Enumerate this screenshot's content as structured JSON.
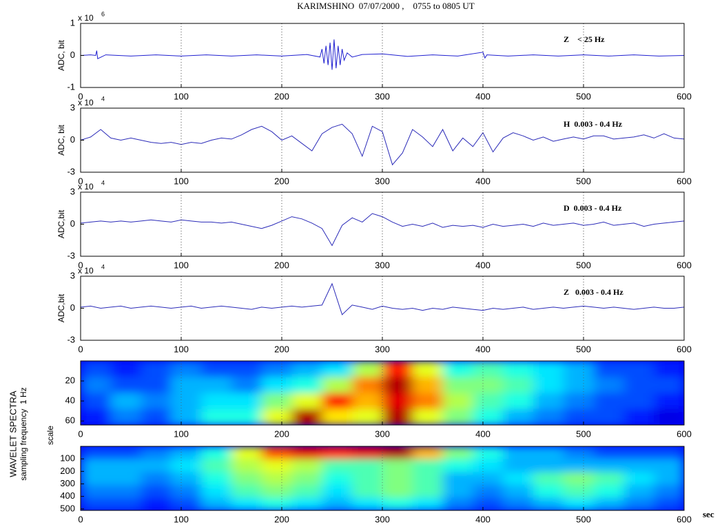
{
  "title": "KARIMSHINO  07/07/2000 ,    0755 to 0805 UT",
  "side_label": "WAVELET SPECTRA",
  "side_sublabel": "sampling frequency  1 Hz",
  "spectra_ylabel": "scale",
  "x_unit": "sec",
  "chart_data": [
    {
      "type": "line",
      "ylabel": "ADC, bit",
      "annotation": "Z    < 25 Hz",
      "scale_label": {
        "base": "x 10",
        "exponent": "6"
      },
      "color": "#1f1fd0",
      "x": [
        0,
        10,
        15,
        16,
        17,
        25,
        50,
        75,
        100,
        125,
        150,
        175,
        200,
        225,
        238,
        240,
        242,
        244,
        246,
        248,
        250,
        252,
        254,
        256,
        258,
        260,
        262,
        265,
        270,
        280,
        300,
        325,
        350,
        375,
        400,
        402,
        404,
        425,
        450,
        475,
        500,
        525,
        550,
        575,
        600
      ],
      "values": [
        0,
        0.02,
        0,
        0.15,
        -0.1,
        0.02,
        -0.02,
        0.02,
        -0.02,
        0.02,
        -0.02,
        0.02,
        -0.02,
        0.03,
        -0.05,
        0.2,
        -0.25,
        0.3,
        -0.3,
        0.4,
        -0.45,
        0.5,
        -0.4,
        0.3,
        -0.3,
        0.2,
        -0.15,
        0.08,
        -0.05,
        0.03,
        0.05,
        -0.03,
        0.02,
        -0.02,
        0.1,
        -0.08,
        0.02,
        -0.02,
        0.02,
        -0.02,
        0.02,
        -0.02,
        0.02,
        -0.02,
        0
      ],
      "xlim": [
        0,
        600
      ],
      "xticks": [
        0,
        100,
        200,
        300,
        400,
        500,
        600
      ],
      "ylim": [
        -1,
        1
      ],
      "yticks": [
        -1,
        0,
        1
      ],
      "grid": true
    },
    {
      "type": "line",
      "ylabel": "ADC, bit",
      "annotation": "H  0.003 - 0.4 Hz",
      "scale_label": {
        "base": "x 10",
        "exponent": "4"
      },
      "color": "#2a2ab8",
      "x": [
        0,
        10,
        20,
        30,
        40,
        50,
        60,
        70,
        80,
        90,
        100,
        110,
        120,
        130,
        140,
        150,
        160,
        170,
        180,
        190,
        200,
        210,
        220,
        230,
        240,
        250,
        260,
        270,
        280,
        290,
        300,
        310,
        320,
        330,
        340,
        350,
        360,
        370,
        380,
        390,
        400,
        410,
        420,
        430,
        440,
        450,
        460,
        470,
        480,
        490,
        500,
        510,
        520,
        530,
        540,
        550,
        560,
        570,
        580,
        590,
        600
      ],
      "values": [
        0,
        0.3,
        1.0,
        0.2,
        0,
        0.2,
        0,
        -0.2,
        -0.3,
        -0.2,
        -0.4,
        -0.2,
        -0.3,
        0,
        0.2,
        0.1,
        0.5,
        1.0,
        1.3,
        0.8,
        0,
        0.4,
        -0.3,
        -1.0,
        0.6,
        1.2,
        1.5,
        0.6,
        -1.5,
        1.3,
        0.8,
        -2.3,
        -1.2,
        1.0,
        0.3,
        -0.6,
        1.0,
        -1.0,
        0.2,
        -0.6,
        0.7,
        -1.1,
        0.2,
        0.7,
        0.4,
        0,
        0.3,
        -0.1,
        0.1,
        0.3,
        0.1,
        0.4,
        0.4,
        0.1,
        0.2,
        0.3,
        0.5,
        0.2,
        0.6,
        0.2,
        0.1
      ],
      "xlim": [
        0,
        600
      ],
      "xticks": [
        0,
        100,
        200,
        300,
        400,
        500,
        600
      ],
      "ylim": [
        -3,
        3
      ],
      "yticks": [
        -3,
        0,
        3
      ],
      "grid": true
    },
    {
      "type": "line",
      "ylabel": "ADC,bit",
      "annotation": "D  0.003 - 0.4 Hz",
      "scale_label": {
        "base": "x 10",
        "exponent": "4"
      },
      "color": "#2a2ab8",
      "x": [
        0,
        10,
        20,
        30,
        40,
        50,
        60,
        70,
        80,
        90,
        100,
        110,
        120,
        130,
        140,
        150,
        160,
        170,
        180,
        190,
        200,
        210,
        220,
        230,
        240,
        250,
        260,
        270,
        280,
        290,
        300,
        310,
        320,
        330,
        340,
        350,
        360,
        370,
        380,
        390,
        400,
        410,
        420,
        430,
        440,
        450,
        460,
        470,
        480,
        490,
        500,
        510,
        520,
        530,
        540,
        550,
        560,
        570,
        580,
        590,
        600
      ],
      "values": [
        0.1,
        0.2,
        0.3,
        0.2,
        0.3,
        0.2,
        0.3,
        0.4,
        0.3,
        0.2,
        0.4,
        0.3,
        0.2,
        0.2,
        0.1,
        0.2,
        0,
        -0.2,
        -0.4,
        -0.1,
        0.3,
        0.7,
        0.5,
        0.1,
        -0.4,
        -2.0,
        -0.1,
        0.6,
        0.2,
        1.0,
        0.7,
        0.2,
        -0.2,
        0,
        -0.2,
        0.1,
        -0.3,
        -0.1,
        -0.2,
        -0.1,
        -0.3,
        0,
        -0.2,
        -0.1,
        0,
        -0.2,
        0.1,
        -0.1,
        0,
        0.1,
        -0.1,
        0,
        0.2,
        -0.1,
        0,
        0.1,
        -0.2,
        0,
        0.1,
        0.2,
        0.3
      ],
      "xlim": [
        0,
        600
      ],
      "xticks": [
        0,
        100,
        200,
        300,
        400,
        500,
        600
      ],
      "ylim": [
        -3,
        3
      ],
      "yticks": [
        -3,
        0,
        3
      ],
      "grid": true
    },
    {
      "type": "line",
      "ylabel": "ADC,bit",
      "annotation": "Z   0.003 - 0.4 Hz",
      "scale_label": {
        "base": "x 10",
        "exponent": "4"
      },
      "color": "#2a2ab8",
      "x": [
        0,
        10,
        20,
        30,
        40,
        50,
        60,
        70,
        80,
        90,
        100,
        110,
        120,
        130,
        140,
        150,
        160,
        170,
        180,
        190,
        200,
        210,
        220,
        230,
        240,
        250,
        260,
        270,
        280,
        290,
        300,
        310,
        320,
        330,
        340,
        350,
        360,
        370,
        380,
        390,
        400,
        410,
        420,
        430,
        440,
        450,
        460,
        470,
        480,
        490,
        500,
        510,
        520,
        530,
        540,
        550,
        560,
        570,
        580,
        590,
        600
      ],
      "values": [
        0.1,
        0.2,
        0,
        0.1,
        0.2,
        0,
        0.1,
        0.2,
        0.1,
        0,
        0.1,
        0.2,
        0,
        0.1,
        0.2,
        0.1,
        0,
        -0.1,
        0.1,
        0,
        0.1,
        0.2,
        0.1,
        0.2,
        0.3,
        2.3,
        -0.6,
        0.3,
        0.1,
        -0.1,
        0.2,
        0,
        -0.1,
        0,
        -0.2,
        0,
        -0.1,
        0.1,
        0,
        -0.1,
        -0.2,
        0,
        -0.1,
        0,
        0.1,
        -0.1,
        0,
        0.1,
        0,
        0.1,
        0.2,
        0.1,
        0,
        0.1,
        0,
        -0.1,
        0,
        0.1,
        0,
        0,
        0.1
      ],
      "xlim": [
        0,
        600
      ],
      "xticks": [
        0,
        100,
        200,
        300,
        400,
        500,
        600
      ],
      "ylim": [
        -3,
        3
      ],
      "yticks": [
        -3,
        0,
        3
      ],
      "grid": true
    },
    {
      "type": "heatmap",
      "x": [
        15,
        45,
        75,
        105,
        135,
        165,
        195,
        225,
        255,
        285,
        315,
        345,
        375,
        405,
        435,
        465,
        495,
        525,
        555,
        585
      ],
      "y": [
        8,
        24,
        40,
        56
      ],
      "z": [
        [
          0.2,
          0.15,
          0.2,
          0.25,
          0.2,
          0.2,
          0.25,
          0.3,
          0.35,
          0.55,
          0.85,
          0.6,
          0.4,
          0.45,
          0.4,
          0.35,
          0.3,
          0.2,
          0.2,
          0.15
        ],
        [
          0.25,
          0.2,
          0.2,
          0.3,
          0.3,
          0.25,
          0.35,
          0.4,
          0.55,
          0.75,
          0.95,
          0.7,
          0.5,
          0.5,
          0.45,
          0.35,
          0.3,
          0.25,
          0.2,
          0.2
        ],
        [
          0.2,
          0.3,
          0.25,
          0.3,
          0.35,
          0.35,
          0.5,
          0.6,
          0.85,
          0.7,
          0.9,
          0.75,
          0.55,
          0.45,
          0.4,
          0.3,
          0.25,
          0.2,
          0.2,
          0.15
        ],
        [
          0.15,
          0.25,
          0.2,
          0.3,
          0.4,
          0.4,
          0.6,
          0.95,
          0.65,
          0.6,
          0.95,
          0.6,
          0.5,
          0.4,
          0.3,
          0.25,
          0.2,
          0.2,
          0.15,
          0.1
        ]
      ],
      "xlim": [
        0,
        600
      ],
      "xticks": [
        0,
        100,
        200,
        300,
        400,
        500,
        600
      ],
      "ylim": [
        64,
        0
      ],
      "yticks": [
        20,
        40,
        60
      ],
      "grid": true
    },
    {
      "type": "heatmap",
      "x": [
        15,
        45,
        75,
        105,
        135,
        165,
        195,
        225,
        255,
        285,
        315,
        345,
        375,
        405,
        435,
        465,
        495,
        525,
        555,
        585
      ],
      "y": [
        51,
        154,
        256,
        358,
        461
      ],
      "z": [
        [
          0.2,
          0.2,
          0.25,
          0.3,
          0.4,
          0.6,
          0.8,
          0.9,
          0.85,
          0.9,
          0.95,
          0.7,
          0.5,
          0.4,
          0.3,
          0.3,
          0.25,
          0.2,
          0.2,
          0.2
        ],
        [
          0.3,
          0.3,
          0.3,
          0.35,
          0.45,
          0.55,
          0.6,
          0.55,
          0.45,
          0.45,
          0.5,
          0.45,
          0.4,
          0.35,
          0.3,
          0.3,
          0.3,
          0.3,
          0.3,
          0.3
        ],
        [
          0.3,
          0.3,
          0.25,
          0.3,
          0.4,
          0.5,
          0.55,
          0.5,
          0.4,
          0.45,
          0.5,
          0.45,
          0.3,
          0.3,
          0.35,
          0.45,
          0.5,
          0.45,
          0.35,
          0.3
        ],
        [
          0.25,
          0.25,
          0.2,
          0.25,
          0.35,
          0.45,
          0.5,
          0.45,
          0.35,
          0.45,
          0.5,
          0.45,
          0.3,
          0.25,
          0.3,
          0.4,
          0.45,
          0.4,
          0.3,
          0.25
        ],
        [
          0.2,
          0.2,
          0.15,
          0.2,
          0.3,
          0.35,
          0.4,
          0.35,
          0.3,
          0.35,
          0.4,
          0.35,
          0.25,
          0.2,
          0.25,
          0.3,
          0.35,
          0.3,
          0.25,
          0.2
        ]
      ],
      "xlim": [
        0,
        600
      ],
      "xticks": [
        0,
        100,
        200,
        300,
        400,
        500,
        600
      ],
      "ylim": [
        512,
        0
      ],
      "yticks": [
        100,
        200,
        300,
        400,
        500
      ],
      "grid": true
    }
  ]
}
